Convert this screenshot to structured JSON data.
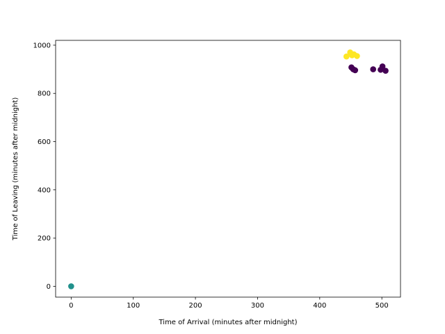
{
  "chart_data": {
    "type": "scatter",
    "title": "",
    "xlabel": "Time of Arrival (minutes after midnight)",
    "ylabel": "Time of Leaving (minutes after midnight)",
    "xlim": [
      -25,
      530
    ],
    "ylim": [
      -45,
      1020
    ],
    "x_ticks": [
      0,
      100,
      200,
      300,
      400,
      500
    ],
    "y_ticks": [
      0,
      200,
      400,
      600,
      800,
      1000
    ],
    "grid": false,
    "legend": "none",
    "colors": {
      "purple": "#440154",
      "teal": "#21918c",
      "yellow": "#fde725"
    },
    "points": [
      {
        "x": 0,
        "y": 0,
        "color": "teal"
      },
      {
        "x": 443,
        "y": 953,
        "color": "yellow"
      },
      {
        "x": 449,
        "y": 970,
        "color": "yellow"
      },
      {
        "x": 452,
        "y": 958,
        "color": "yellow"
      },
      {
        "x": 455,
        "y": 962,
        "color": "yellow"
      },
      {
        "x": 460,
        "y": 955,
        "color": "yellow"
      },
      {
        "x": 451,
        "y": 908,
        "color": "purple"
      },
      {
        "x": 454,
        "y": 900,
        "color": "purple"
      },
      {
        "x": 457,
        "y": 896,
        "color": "purple"
      },
      {
        "x": 486,
        "y": 900,
        "color": "purple"
      },
      {
        "x": 498,
        "y": 898,
        "color": "purple"
      },
      {
        "x": 501,
        "y": 912,
        "color": "purple"
      },
      {
        "x": 506,
        "y": 894,
        "color": "purple"
      }
    ]
  }
}
